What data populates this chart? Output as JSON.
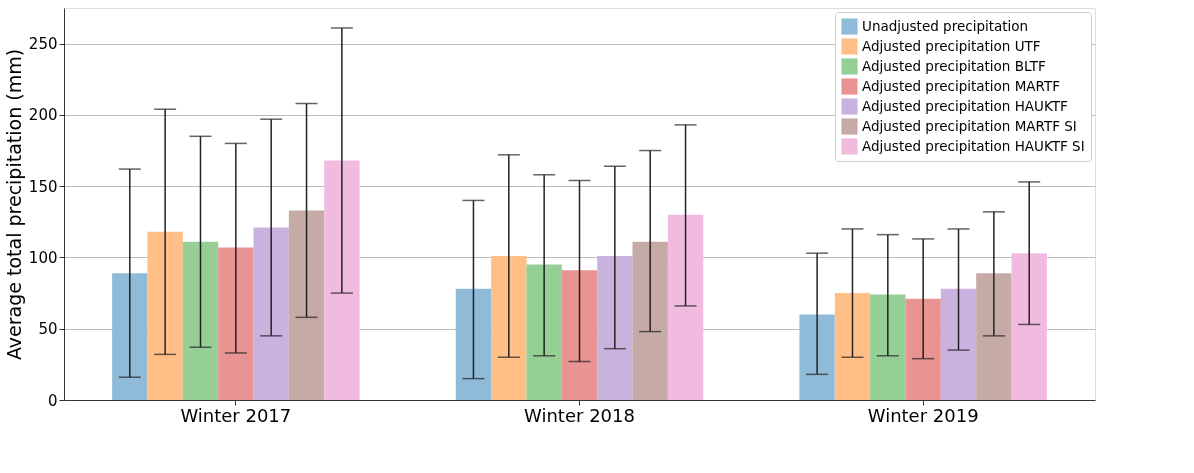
{
  "chart_data": {
    "type": "bar",
    "ylabel": "Average total precipitation (mm)",
    "categories": [
      "Winter 2017",
      "Winter 2018",
      "Winter 2019"
    ],
    "series": [
      {
        "name": "Unadjusted precipitation",
        "color": "#8fbbd9",
        "values": [
          89,
          78,
          60
        ],
        "errors": [
          [
            16,
            162
          ],
          [
            15,
            140
          ],
          [
            18,
            103
          ]
        ]
      },
      {
        "name": "Adjusted precipitation UTF",
        "color": "#ffbf86",
        "values": [
          118,
          101,
          75
        ],
        "errors": [
          [
            32,
            204
          ],
          [
            30,
            172
          ],
          [
            30,
            120
          ]
        ]
      },
      {
        "name": "Adjusted precipitation BLTF",
        "color": "#95cf95",
        "values": [
          111,
          95,
          74
        ],
        "errors": [
          [
            37,
            185
          ],
          [
            31,
            158
          ],
          [
            31,
            116
          ]
        ]
      },
      {
        "name": "Adjusted precipitation MARTF",
        "color": "#ea9393",
        "values": [
          107,
          91,
          71
        ],
        "errors": [
          [
            33,
            180
          ],
          [
            27,
            154
          ],
          [
            29,
            113
          ]
        ]
      },
      {
        "name": "Adjusted precipitation HAUKTF",
        "color": "#c9b3de",
        "values": [
          121,
          101,
          78
        ],
        "errors": [
          [
            45,
            197
          ],
          [
            36,
            164
          ],
          [
            35,
            120
          ]
        ]
      },
      {
        "name": "Adjusted precipitation MARTF SI",
        "color": "#c5aaa5",
        "values": [
          133,
          111,
          89
        ],
        "errors": [
          [
            58,
            208
          ],
          [
            48,
            175
          ],
          [
            45,
            132
          ]
        ]
      },
      {
        "name": "Adjusted precipitation HAUKTF SI",
        "color": "#f1bbe0",
        "values": [
          168,
          130,
          103
        ],
        "errors": [
          [
            75,
            261
          ],
          [
            66,
            193
          ],
          [
            53,
            153
          ]
        ]
      }
    ],
    "ylim": [
      0,
      275
    ],
    "yticks": [
      0,
      50,
      100,
      150,
      200,
      250
    ],
    "grid": "y",
    "legend": "top right"
  }
}
